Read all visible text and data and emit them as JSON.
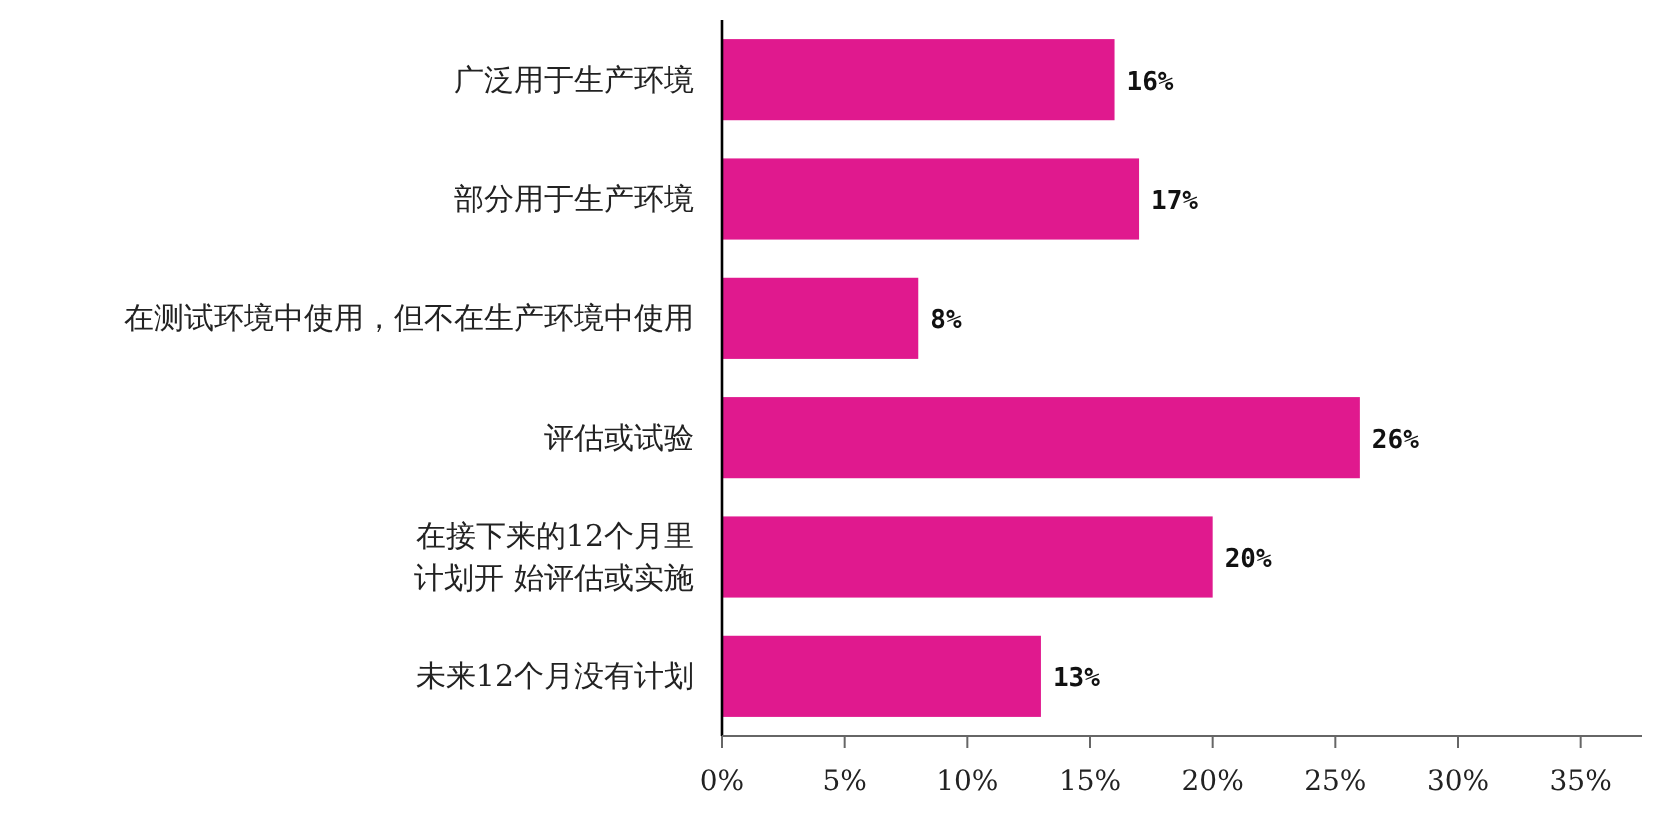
{
  "chart_data": {
    "type": "bar",
    "orientation": "horizontal",
    "categories": [
      "广泛用于生产环境",
      "部分用于生产环境",
      "在测试环境中使用，但不在生产环境中使用",
      "评估或试验",
      "在接下来的12个月里计划开 始评估或实施",
      "未来12个月没有计划"
    ],
    "values": [
      16,
      17,
      8,
      26,
      20,
      13
    ],
    "value_labels": [
      "16%",
      "17%",
      "8%",
      "26%",
      "20%",
      "13%"
    ],
    "color": "#e0198e",
    "xlim": [
      0,
      37.5
    ],
    "xticks": [
      {
        "value": 0,
        "label": "0%"
      },
      {
        "value": 5,
        "label": "5%"
      },
      {
        "value": 10,
        "label": "10%"
      },
      {
        "value": 15,
        "label": "15%"
      },
      {
        "value": 20,
        "label": "20%"
      },
      {
        "value": 25,
        "label": "25%"
      },
      {
        "value": 30,
        "label": "30%"
      },
      {
        "value": 35,
        "label": "35%"
      }
    ],
    "grid": false
  }
}
